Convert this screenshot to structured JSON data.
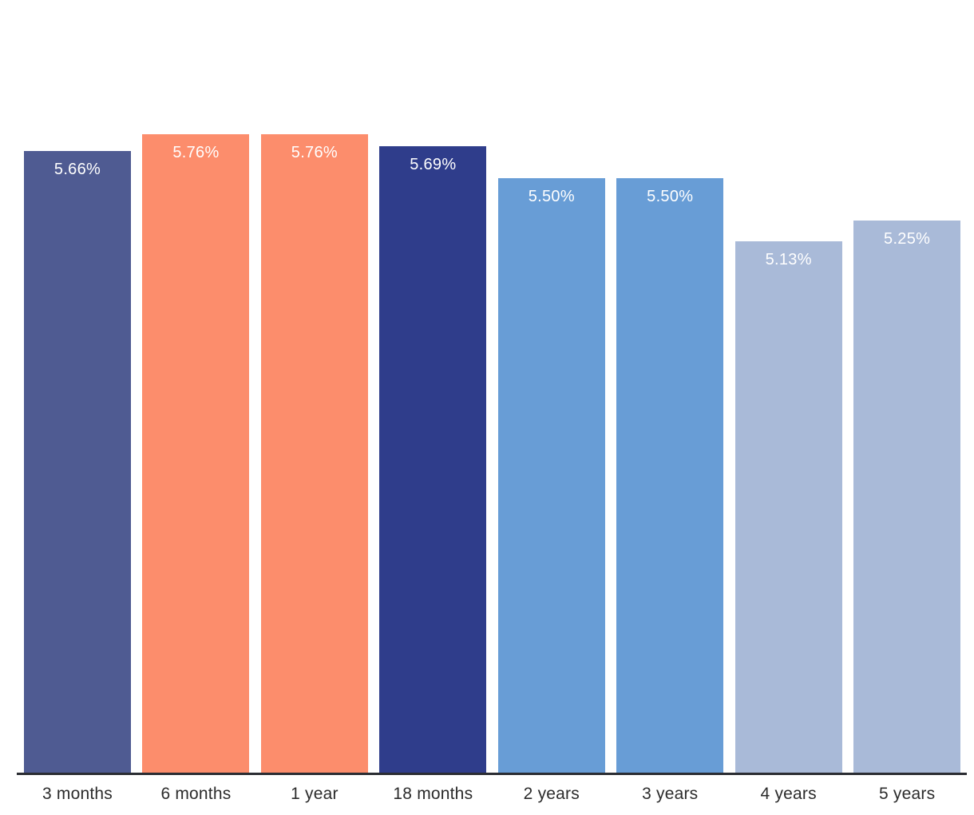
{
  "chart_data": {
    "type": "bar",
    "title": "",
    "xlabel": "",
    "ylabel": "",
    "categories": [
      "3 months",
      "6 months",
      "1 year",
      "18 months",
      "2 years",
      "3 years",
      "4 years",
      "5 years"
    ],
    "values": [
      5.66,
      5.76,
      5.76,
      5.69,
      5.5,
      5.5,
      5.13,
      5.25
    ],
    "value_labels": [
      "5.66%",
      "5.76%",
      "5.76%",
      "5.69%",
      "5.50%",
      "5.50%",
      "5.13%",
      "5.25%"
    ],
    "bar_colors": [
      "#4f5b92",
      "#fc8d6c",
      "#fc8d6c",
      "#2f3d8b",
      "#689dd6",
      "#689dd6",
      "#a9bad8",
      "#a9bad8"
    ],
    "ylim": [
      2.0,
      6.55
    ],
    "grid": false,
    "legend": false,
    "value_label_color": "#ffffff",
    "axis_line_color": "#2b2d33",
    "tick_label_color": "#2b2b2b"
  }
}
